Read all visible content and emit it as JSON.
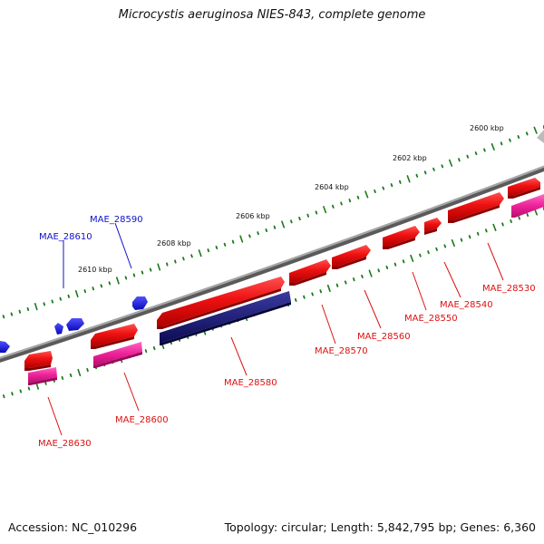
{
  "title": "Microcystis aeruginosa NIES-843, complete genome",
  "footer": {
    "accession": "Accession: NC_010296",
    "summary": "Topology: circular; Length: 5,842,795 bp; Genes: 6,360"
  },
  "colors": {
    "backbone": "#8a8a8a",
    "tick": "#1a7a1a",
    "forward_gene": "#ee1111",
    "reverse_gene": "#1111ee",
    "pseudogene": "#ee2299",
    "highlight_gene": "#1a1a7a",
    "label_red": "#dd1111",
    "label_blue": "#1111cc"
  },
  "ruler": {
    "labels": [
      "2600 kbp",
      "2602 kbp",
      "2604 kbp",
      "2606 kbp",
      "2608 kbp",
      "2610 kbp"
    ]
  },
  "gene_labels_red": [
    "MAE_28530",
    "MAE_28540",
    "MAE_28550",
    "MAE_28560",
    "MAE_28570",
    "MAE_28580",
    "MAE_28600",
    "MAE_28630"
  ],
  "gene_labels_blue": [
    "MAE_28590",
    "MAE_28610"
  ]
}
